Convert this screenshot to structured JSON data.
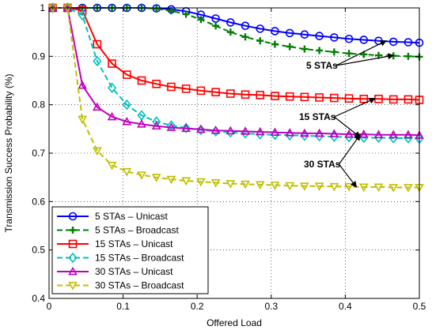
{
  "chart_data": {
    "type": "line",
    "title": "",
    "xlabel": "Offered Load",
    "ylabel": "Transmission Success Probability (%)",
    "xlim": [
      0,
      0.5
    ],
    "ylim": [
      0.4,
      1.0
    ],
    "xticks": [
      0,
      0.1,
      0.2,
      0.3,
      0.4,
      0.5
    ],
    "yticks": [
      0.4,
      0.5,
      0.6,
      0.7,
      0.8,
      0.9,
      1.0
    ],
    "xtick_labels": [
      "0",
      "0.1",
      "0.2",
      "0.3",
      "0.4",
      "0.5"
    ],
    "ytick_labels": [
      "0.4",
      "0.5",
      "0.6",
      "0.7",
      "0.8",
      "0.9",
      "1"
    ],
    "grid": true,
    "legend_position": "bottom-left",
    "x": [
      0.005,
      0.025,
      0.045,
      0.065,
      0.085,
      0.105,
      0.125,
      0.145,
      0.165,
      0.185,
      0.205,
      0.225,
      0.245,
      0.265,
      0.285,
      0.305,
      0.325,
      0.345,
      0.365,
      0.385,
      0.405,
      0.425,
      0.445,
      0.465,
      0.485,
      0.5
    ],
    "series": [
      {
        "name": "5 STAs – Unicast",
        "color": "#0000ff",
        "dashed": false,
        "marker": "circle",
        "values": [
          1.0,
          1.0,
          1.0,
          1.0,
          1.0,
          1.0,
          1.0,
          0.999,
          0.997,
          0.993,
          0.986,
          0.978,
          0.97,
          0.963,
          0.957,
          0.952,
          0.948,
          0.945,
          0.942,
          0.939,
          0.936,
          0.934,
          0.932,
          0.93,
          0.929,
          0.928
        ]
      },
      {
        "name": "5 STAs – Broadcast",
        "color": "#007f00",
        "dashed": true,
        "marker": "plus",
        "values": [
          1.0,
          1.0,
          1.0,
          1.0,
          1.0,
          1.0,
          1.0,
          0.998,
          0.994,
          0.987,
          0.976,
          0.963,
          0.95,
          0.94,
          0.932,
          0.925,
          0.92,
          0.915,
          0.912,
          0.909,
          0.906,
          0.904,
          0.902,
          0.901,
          0.9,
          0.899
        ]
      },
      {
        "name": "15 STAs – Unicast",
        "color": "#ff0000",
        "dashed": false,
        "marker": "square",
        "values": [
          1.0,
          1.0,
          0.995,
          0.925,
          0.885,
          0.862,
          0.85,
          0.843,
          0.837,
          0.833,
          0.829,
          0.826,
          0.823,
          0.821,
          0.82,
          0.818,
          0.817,
          0.816,
          0.815,
          0.814,
          0.813,
          0.812,
          0.812,
          0.811,
          0.811,
          0.81
        ]
      },
      {
        "name": "15 STAs – Broadcast",
        "color": "#00bfbf",
        "dashed": true,
        "marker": "diamond",
        "values": [
          1.0,
          1.0,
          0.985,
          0.89,
          0.835,
          0.8,
          0.778,
          0.765,
          0.757,
          0.752,
          0.748,
          0.745,
          0.743,
          0.741,
          0.739,
          0.738,
          0.737,
          0.736,
          0.735,
          0.734,
          0.733,
          0.732,
          0.732,
          0.731,
          0.731,
          0.73
        ]
      },
      {
        "name": "30 STAs – Unicast",
        "color": "#bf00bf",
        "dashed": false,
        "marker": "triangle-up",
        "values": [
          1.0,
          1.0,
          0.84,
          0.795,
          0.775,
          0.765,
          0.76,
          0.756,
          0.753,
          0.751,
          0.749,
          0.747,
          0.746,
          0.745,
          0.744,
          0.743,
          0.742,
          0.741,
          0.741,
          0.74,
          0.739,
          0.739,
          0.738,
          0.738,
          0.738,
          0.737
        ]
      },
      {
        "name": "30 STAs – Broadcast",
        "color": "#bfbf00",
        "dashed": true,
        "marker": "triangle-down",
        "values": [
          1.0,
          1.0,
          0.77,
          0.705,
          0.675,
          0.662,
          0.655,
          0.65,
          0.646,
          0.643,
          0.641,
          0.639,
          0.637,
          0.636,
          0.635,
          0.634,
          0.633,
          0.632,
          0.632,
          0.631,
          0.631,
          0.63,
          0.63,
          0.629,
          0.629,
          0.629
        ]
      }
    ],
    "annotations": [
      {
        "text": "5 STAs",
        "arrows_to": [
          [
            0.455,
            0.932
          ],
          [
            0.465,
            0.902
          ]
        ]
      },
      {
        "text": "15 STAs",
        "arrows_to": [
          [
            0.44,
            0.813
          ],
          [
            0.42,
            0.733
          ]
        ]
      },
      {
        "text": "30 STAs",
        "arrows_to": [
          [
            0.42,
            0.738
          ],
          [
            0.415,
            0.63
          ]
        ]
      }
    ]
  }
}
